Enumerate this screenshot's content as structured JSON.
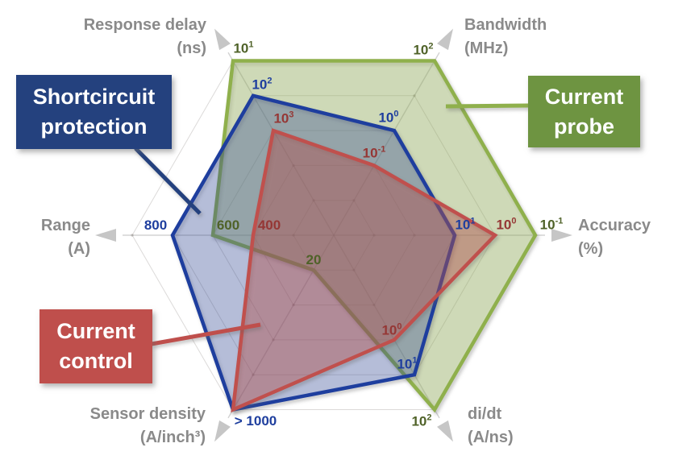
{
  "chart_data": {
    "type": "radar",
    "levels": 5,
    "grid": true,
    "axes": [
      {
        "id": "response_delay",
        "label": "Response delay",
        "unit": "(ns)",
        "angle_deg": 120
      },
      {
        "id": "bandwidth",
        "label": "Bandwidth",
        "unit": "(MHz)",
        "angle_deg": 60
      },
      {
        "id": "accuracy",
        "label": "Accuracy",
        "unit": "(%)",
        "angle_deg": 0
      },
      {
        "id": "didt",
        "label": "di/dt",
        "unit": "(A/ns)",
        "angle_deg": -60
      },
      {
        "id": "sensor_density",
        "label": "Sensor density",
        "unit": "(A/inch³)",
        "angle_deg": -120
      },
      {
        "id": "range",
        "label": "Range",
        "unit": "(A)",
        "angle_deg": 180
      }
    ],
    "series": [
      {
        "id": "current_probe",
        "name": "Current probe",
        "box": {
          "line1": "Current",
          "line2": "probe"
        },
        "stroke": "#8fb04c",
        "fill": "rgba(155,187,89,0.35)",
        "tick_color": "#4f6228",
        "box_color": "#6e9441",
        "leader_color": "#8fb04c",
        "values": {
          "response_delay": {
            "level": 5,
            "base": "10",
            "exp": "1"
          },
          "bandwidth": {
            "level": 5,
            "base": "10",
            "exp": "2"
          },
          "accuracy": {
            "level": 5,
            "base": "10",
            "exp": "-1"
          },
          "didt": {
            "level": 5,
            "base": "10",
            "exp": "2"
          },
          "sensor_density": {
            "level": 1,
            "base": "20",
            "exp": ""
          },
          "range": {
            "level": 3,
            "base": "600",
            "exp": ""
          }
        }
      },
      {
        "id": "shortcircuit_protection",
        "name": "Shortcircuit protection",
        "box": {
          "line1": "Shortcircuit",
          "line2": "protection"
        },
        "stroke": "#1e3e9e",
        "fill": "rgba(31,62,158,0.28)",
        "tick_color": "#1e3e9e",
        "box_color": "#24417e",
        "leader_color": "#24417e",
        "values": {
          "response_delay": {
            "level": 4,
            "base": "10",
            "exp": "2"
          },
          "bandwidth": {
            "level": 3,
            "base": "10",
            "exp": "0"
          },
          "accuracy": {
            "level": 3,
            "base": "10",
            "exp": "1"
          },
          "didt": {
            "level": 4,
            "base": "10",
            "exp": "1"
          },
          "sensor_density": {
            "level": 5,
            "base": "> 1000",
            "exp": ""
          },
          "range": {
            "level": 4,
            "base": "800",
            "exp": ""
          }
        }
      },
      {
        "id": "current_control",
        "name": "Current control",
        "box": {
          "line1": "Current",
          "line2": "control"
        },
        "stroke": "#c0504d",
        "fill": "rgba(192,80,77,0.38)",
        "tick_color": "#953735",
        "box_color": "#bf4f4c",
        "leader_color": "#bf4f4c",
        "values": {
          "response_delay": {
            "level": 3,
            "base": "10",
            "exp": "3"
          },
          "bandwidth": {
            "level": 2,
            "base": "10",
            "exp": "-1"
          },
          "accuracy": {
            "level": 4,
            "base": "10",
            "exp": "0"
          },
          "didt": {
            "level": 3,
            "base": "10",
            "exp": "0"
          },
          "sensor_density": {
            "level": 5,
            "base": "",
            "exp": ""
          },
          "range": {
            "level": 2,
            "base": "400",
            "exp": ""
          }
        }
      }
    ]
  }
}
